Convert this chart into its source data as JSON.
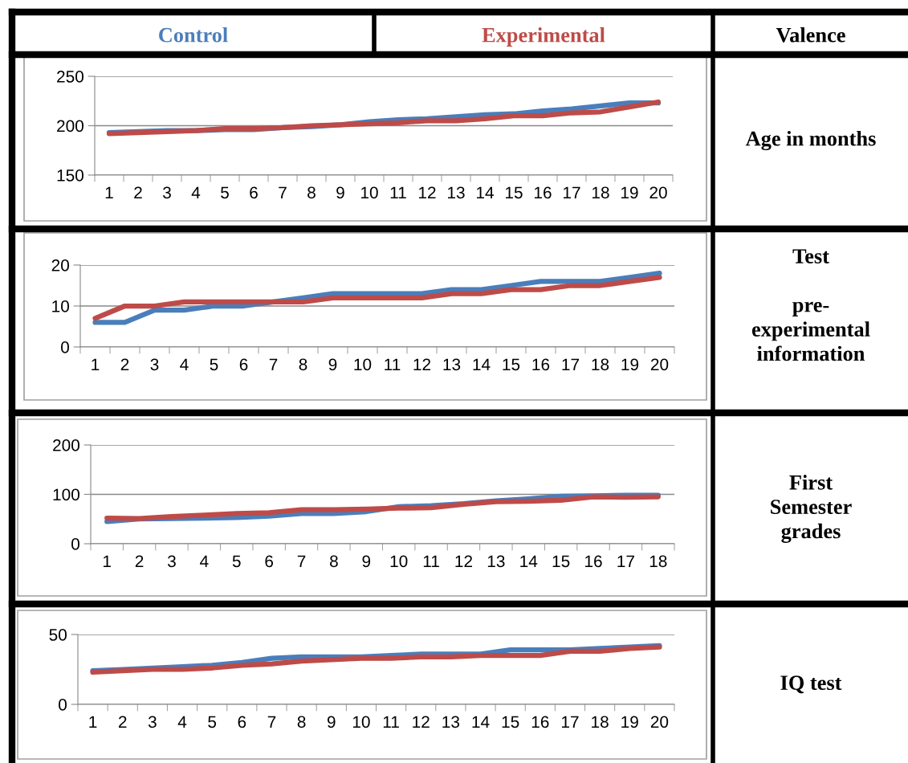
{
  "chart_data": [
    {
      "type": "line",
      "categories": [
        "1",
        "2",
        "3",
        "4",
        "5",
        "6",
        "7",
        "8",
        "9",
        "10",
        "11",
        "12",
        "13",
        "14",
        "15",
        "16",
        "17",
        "18",
        "19",
        "20"
      ],
      "ylim": [
        150,
        250
      ],
      "yticks": [
        150,
        200,
        250
      ],
      "grid": "y",
      "legend": "top",
      "marker": "none",
      "line_style": "solid",
      "annotations": [
        "Valence",
        "Age in months"
      ],
      "series": [
        {
          "name": "Control",
          "color": "#4a7ebb",
          "values": [
            193,
            194,
            195,
            195,
            196,
            196,
            198,
            199,
            201,
            204,
            206,
            207,
            209,
            211,
            212,
            215,
            217,
            220,
            223,
            223
          ]
        },
        {
          "name": "Experimental",
          "color": "#be4b48",
          "values": [
            192,
            193,
            194,
            195,
            197,
            197,
            198,
            200,
            201,
            202,
            203,
            205,
            205,
            207,
            210,
            210,
            213,
            214,
            219,
            224
          ]
        }
      ]
    },
    {
      "type": "line",
      "categories": [
        "1",
        "2",
        "3",
        "4",
        "5",
        "6",
        "7",
        "8",
        "9",
        "10",
        "11",
        "12",
        "13",
        "14",
        "15",
        "16",
        "17",
        "18",
        "19",
        "20"
      ],
      "ylim": [
        0,
        20
      ],
      "yticks": [
        0,
        10,
        20
      ],
      "grid": "y",
      "marker": "none",
      "line_style": "solid",
      "annotations": [
        "Test\n\npre-\nexperimental\ninformation"
      ],
      "series": [
        {
          "color": "#4a7ebb",
          "values": [
            6,
            6,
            9,
            9,
            10,
            10,
            11,
            12,
            13,
            13,
            13,
            13,
            14,
            14,
            15,
            16,
            16,
            16,
            17,
            18
          ]
        },
        {
          "color": "#be4b48",
          "values": [
            7,
            10,
            10,
            11,
            11,
            11,
            11,
            11,
            12,
            12,
            12,
            12,
            13,
            13,
            14,
            14,
            15,
            15,
            16,
            17
          ]
        }
      ]
    },
    {
      "type": "line",
      "categories": [
        "1",
        "2",
        "3",
        "4",
        "5",
        "6",
        "7",
        "8",
        "9",
        "10",
        "11",
        "12",
        "13",
        "14",
        "15",
        "16",
        "17",
        "18"
      ],
      "ylim": [
        0,
        200
      ],
      "yticks": [
        0,
        100,
        200
      ],
      "grid": "y",
      "marker": "none",
      "line_style": "solid",
      "annotations": [
        "First\nSemester\ngrades"
      ],
      "series": [
        {
          "color": "#4a7ebb",
          "values": [
            45,
            50,
            51,
            52,
            53,
            56,
            61,
            61,
            65,
            75,
            77,
            81,
            87,
            91,
            96,
            97,
            98,
            98
          ]
        },
        {
          "color": "#be4b48",
          "values": [
            52,
            51,
            55,
            58,
            61,
            63,
            69,
            69,
            70,
            72,
            73,
            80,
            85,
            86,
            88,
            95,
            94,
            95
          ]
        }
      ]
    },
    {
      "type": "line",
      "categories": [
        "1",
        "2",
        "3",
        "4",
        "5",
        "6",
        "7",
        "8",
        "9",
        "10",
        "11",
        "12",
        "13",
        "14",
        "15",
        "16",
        "17",
        "18",
        "19",
        "20"
      ],
      "ylim": [
        0,
        50
      ],
      "yticks": [
        0,
        50
      ],
      "grid": "y",
      "marker": "none",
      "line_style": "solid",
      "annotations": [
        "IQ test"
      ],
      "series": [
        {
          "color": "#4a7ebb",
          "values": [
            24,
            25,
            26,
            27,
            28,
            30,
            33,
            34,
            34,
            34,
            35,
            36,
            36,
            36,
            39,
            39,
            39,
            40,
            41,
            42
          ]
        },
        {
          "color": "#be4b48",
          "values": [
            23,
            24,
            25,
            25,
            26,
            28,
            29,
            31,
            32,
            33,
            33,
            34,
            34,
            35,
            35,
            35,
            38,
            38,
            40,
            41
          ]
        }
      ]
    }
  ]
}
